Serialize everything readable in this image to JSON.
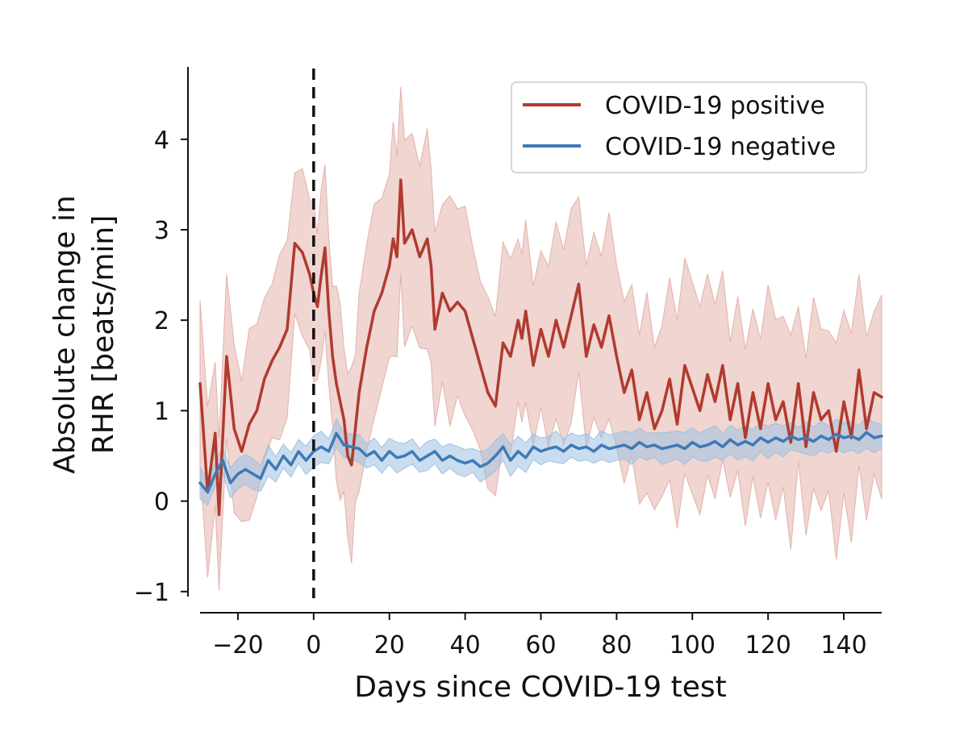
{
  "chart_data": {
    "type": "line",
    "xlabel": "Days since COVID-19 test",
    "ylabel_line1": "Absolute change in",
    "ylabel_line2": "RHR [beats/min]",
    "xlim": [
      -30,
      150
    ],
    "ylim": [
      -1.1,
      4.8
    ],
    "xticks": [
      -20,
      0,
      20,
      40,
      60,
      80,
      100,
      120,
      140
    ],
    "xtick_labels": [
      "−20",
      "0",
      "20",
      "40",
      "60",
      "80",
      "100",
      "120",
      "140"
    ],
    "yticks": [
      -1,
      0,
      1,
      2,
      3,
      4
    ],
    "ytick_labels": [
      "−1",
      "0",
      "1",
      "2",
      "3",
      "4"
    ],
    "reference_line_x": 0,
    "legend_position": "top-right",
    "grid": false,
    "series": [
      {
        "name": "COVID-19 positive",
        "color": "#b03a2e",
        "band_color": "#e3b2ab",
        "points": [
          [
            -30,
            1.3
          ],
          [
            -28,
            0.1
          ],
          [
            -26,
            0.75
          ],
          [
            -25,
            -0.15
          ],
          [
            -23,
            1.6
          ],
          [
            -21,
            0.8
          ],
          [
            -19,
            0.55
          ],
          [
            -17,
            0.85
          ],
          [
            -15,
            1.0
          ],
          [
            -13,
            1.35
          ],
          [
            -11,
            1.55
          ],
          [
            -9,
            1.7
          ],
          [
            -7,
            1.9
          ],
          [
            -5,
            2.85
          ],
          [
            -3,
            2.75
          ],
          [
            -1,
            2.5
          ],
          [
            0,
            2.3
          ],
          [
            1,
            2.15
          ],
          [
            2,
            2.5
          ],
          [
            3,
            2.8
          ],
          [
            4,
            2.1
          ],
          [
            5,
            1.6
          ],
          [
            6,
            1.3
          ],
          [
            7,
            1.1
          ],
          [
            8,
            0.9
          ],
          [
            9,
            0.5
          ],
          [
            10,
            0.4
          ],
          [
            11,
            0.8
          ],
          [
            12,
            1.2
          ],
          [
            14,
            1.7
          ],
          [
            16,
            2.1
          ],
          [
            18,
            2.3
          ],
          [
            20,
            2.6
          ],
          [
            21,
            2.9
          ],
          [
            22,
            2.7
          ],
          [
            23,
            3.55
          ],
          [
            24,
            2.85
          ],
          [
            26,
            3.0
          ],
          [
            28,
            2.7
          ],
          [
            30,
            2.9
          ],
          [
            31,
            2.6
          ],
          [
            32,
            1.9
          ],
          [
            34,
            2.3
          ],
          [
            36,
            2.1
          ],
          [
            38,
            2.2
          ],
          [
            40,
            2.1
          ],
          [
            42,
            1.8
          ],
          [
            44,
            1.5
          ],
          [
            46,
            1.2
          ],
          [
            48,
            1.05
          ],
          [
            50,
            1.75
          ],
          [
            52,
            1.6
          ],
          [
            54,
            2.0
          ],
          [
            55,
            1.8
          ],
          [
            56,
            2.1
          ],
          [
            58,
            1.5
          ],
          [
            60,
            1.9
          ],
          [
            62,
            1.6
          ],
          [
            64,
            2.0
          ],
          [
            66,
            1.7
          ],
          [
            68,
            2.05
          ],
          [
            70,
            2.4
          ],
          [
            72,
            1.6
          ],
          [
            74,
            1.95
          ],
          [
            76,
            1.7
          ],
          [
            78,
            2.05
          ],
          [
            80,
            1.6
          ],
          [
            82,
            1.2
          ],
          [
            84,
            1.45
          ],
          [
            86,
            0.9
          ],
          [
            88,
            1.2
          ],
          [
            90,
            0.8
          ],
          [
            92,
            1.0
          ],
          [
            94,
            1.35
          ],
          [
            96,
            0.85
          ],
          [
            98,
            1.5
          ],
          [
            100,
            1.25
          ],
          [
            102,
            1.0
          ],
          [
            104,
            1.4
          ],
          [
            106,
            1.1
          ],
          [
            108,
            1.5
          ],
          [
            110,
            0.9
          ],
          [
            112,
            1.3
          ],
          [
            114,
            0.7
          ],
          [
            116,
            1.2
          ],
          [
            118,
            0.8
          ],
          [
            120,
            1.3
          ],
          [
            122,
            0.9
          ],
          [
            124,
            1.1
          ],
          [
            126,
            0.65
          ],
          [
            128,
            1.3
          ],
          [
            130,
            0.6
          ],
          [
            132,
            1.2
          ],
          [
            134,
            0.9
          ],
          [
            136,
            1.0
          ],
          [
            138,
            0.55
          ],
          [
            140,
            1.1
          ],
          [
            142,
            0.7
          ],
          [
            144,
            1.45
          ],
          [
            146,
            0.8
          ],
          [
            148,
            1.2
          ],
          [
            150,
            1.15
          ]
        ]
      },
      {
        "name": "COVID-19 negative",
        "color": "#3d7ab8",
        "band_color": "#9fc1e0",
        "points": [
          [
            -30,
            0.2
          ],
          [
            -28,
            0.1
          ],
          [
            -26,
            0.3
          ],
          [
            -24,
            0.45
          ],
          [
            -22,
            0.2
          ],
          [
            -20,
            0.3
          ],
          [
            -18,
            0.35
          ],
          [
            -16,
            0.3
          ],
          [
            -14,
            0.25
          ],
          [
            -12,
            0.45
          ],
          [
            -10,
            0.35
          ],
          [
            -8,
            0.5
          ],
          [
            -6,
            0.4
          ],
          [
            -4,
            0.55
          ],
          [
            -2,
            0.45
          ],
          [
            0,
            0.55
          ],
          [
            2,
            0.6
          ],
          [
            4,
            0.55
          ],
          [
            6,
            0.75
          ],
          [
            8,
            0.62
          ],
          [
            10,
            0.6
          ],
          [
            12,
            0.58
          ],
          [
            14,
            0.5
          ],
          [
            16,
            0.55
          ],
          [
            18,
            0.45
          ],
          [
            20,
            0.55
          ],
          [
            22,
            0.48
          ],
          [
            24,
            0.5
          ],
          [
            26,
            0.55
          ],
          [
            28,
            0.45
          ],
          [
            30,
            0.5
          ],
          [
            32,
            0.55
          ],
          [
            34,
            0.45
          ],
          [
            36,
            0.5
          ],
          [
            38,
            0.45
          ],
          [
            40,
            0.42
          ],
          [
            42,
            0.45
          ],
          [
            44,
            0.38
          ],
          [
            46,
            0.42
          ],
          [
            48,
            0.5
          ],
          [
            50,
            0.6
          ],
          [
            52,
            0.45
          ],
          [
            54,
            0.55
          ],
          [
            56,
            0.48
          ],
          [
            58,
            0.6
          ],
          [
            60,
            0.55
          ],
          [
            62,
            0.58
          ],
          [
            64,
            0.6
          ],
          [
            66,
            0.55
          ],
          [
            68,
            0.62
          ],
          [
            70,
            0.58
          ],
          [
            72,
            0.6
          ],
          [
            74,
            0.55
          ],
          [
            76,
            0.62
          ],
          [
            78,
            0.58
          ],
          [
            80,
            0.6
          ],
          [
            82,
            0.62
          ],
          [
            84,
            0.58
          ],
          [
            86,
            0.65
          ],
          [
            88,
            0.6
          ],
          [
            90,
            0.62
          ],
          [
            92,
            0.58
          ],
          [
            94,
            0.6
          ],
          [
            96,
            0.62
          ],
          [
            98,
            0.58
          ],
          [
            100,
            0.65
          ],
          [
            102,
            0.6
          ],
          [
            104,
            0.62
          ],
          [
            106,
            0.66
          ],
          [
            108,
            0.6
          ],
          [
            110,
            0.68
          ],
          [
            112,
            0.62
          ],
          [
            114,
            0.66
          ],
          [
            116,
            0.62
          ],
          [
            118,
            0.7
          ],
          [
            120,
            0.65
          ],
          [
            122,
            0.7
          ],
          [
            124,
            0.66
          ],
          [
            126,
            0.72
          ],
          [
            128,
            0.68
          ],
          [
            130,
            0.7
          ],
          [
            132,
            0.66
          ],
          [
            134,
            0.72
          ],
          [
            136,
            0.68
          ],
          [
            138,
            0.74
          ],
          [
            140,
            0.7
          ],
          [
            142,
            0.72
          ],
          [
            144,
            0.68
          ],
          [
            146,
            0.76
          ],
          [
            148,
            0.7
          ],
          [
            150,
            0.72
          ]
        ]
      }
    ]
  }
}
